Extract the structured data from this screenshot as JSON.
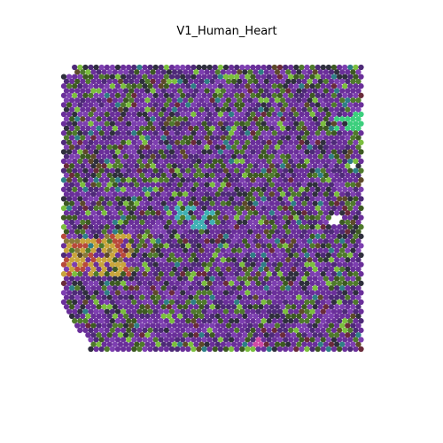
{
  "figure": {
    "title": "V1_Human_Heart"
  },
  "colors": {
    "background": "#ffffff",
    "palette": [
      {
        "name": "purple-main",
        "hex": "#6a2f9a",
        "weight": 30
      },
      {
        "name": "purple-light",
        "hex": "#7d3fb0",
        "weight": 14
      },
      {
        "name": "purple-deep",
        "hex": "#4e2a78",
        "weight": 12
      },
      {
        "name": "dark-slate",
        "hex": "#2f2f3d",
        "weight": 7
      },
      {
        "name": "green-dark",
        "hex": "#3d5a22",
        "weight": 8
      },
      {
        "name": "green-mid",
        "hex": "#4f7a2c",
        "weight": 9
      },
      {
        "name": "green-light",
        "hex": "#7bbf3e",
        "weight": 5
      },
      {
        "name": "teal",
        "hex": "#2f7f86",
        "weight": 3
      },
      {
        "name": "brown-olive",
        "hex": "#5d4a2a",
        "weight": 3
      },
      {
        "name": "maroon",
        "hex": "#6a2b3a",
        "weight": 2
      }
    ],
    "regions": [
      {
        "name": "gold-band",
        "hex": "#c9a53c"
      },
      {
        "name": "red-band",
        "hex": "#b84a3b"
      },
      {
        "name": "cyan-streak",
        "hex": "#3fb0b4"
      },
      {
        "name": "mint-edge",
        "hex": "#3ccf7d"
      },
      {
        "name": "pink-spot",
        "hex": "#d04ca6"
      }
    ]
  }
}
